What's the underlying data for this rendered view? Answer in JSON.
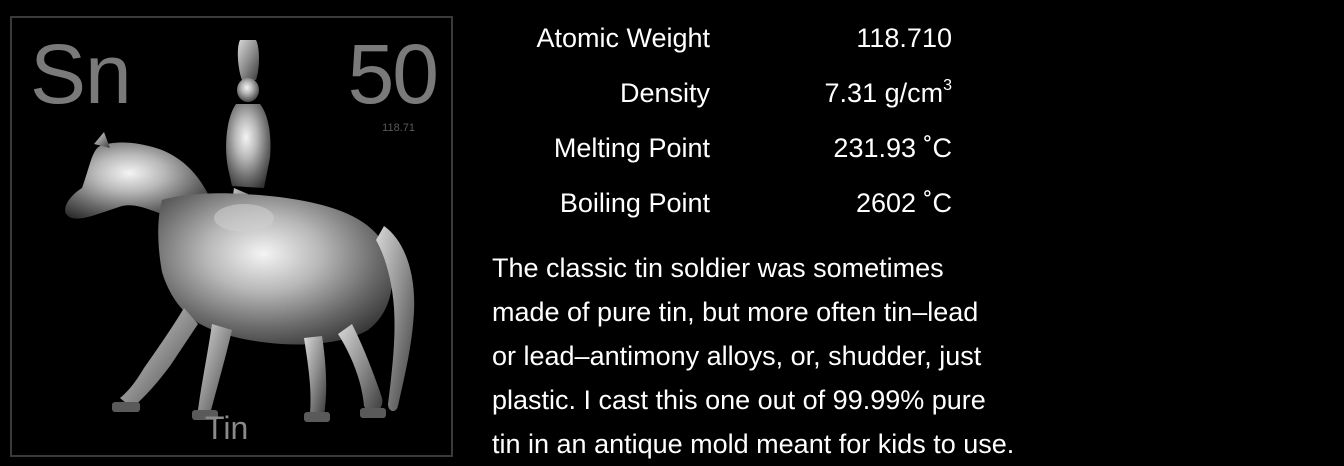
{
  "element": {
    "symbol": "Sn",
    "atomic_number": "50",
    "atomic_weight_small": "118.71",
    "name": "Tin"
  },
  "properties": [
    {
      "label": "Atomic Weight",
      "value": "118.710",
      "unit": "",
      "sup": ""
    },
    {
      "label": "Density",
      "value": "7.31 g/cm",
      "unit": "",
      "sup": "3"
    },
    {
      "label": "Melting Point",
      "value": "231.93 ˚C",
      "unit": "",
      "sup": ""
    },
    {
      "label": "Boiling Point",
      "value": "2602 ˚C",
      "unit": "",
      "sup": ""
    }
  ],
  "description_lines": [
    "The classic tin soldier was sometimes",
    "made of pure tin, but more often tin–lead",
    "or lead–antimony alloys, or, shudder, just",
    "plastic.  I cast this one out of 99.99% pure",
    "tin in an antique mold meant for kids to use."
  ],
  "colors": {
    "background": "#000000",
    "tile_text": "#7a7a7a",
    "text": "#ffffff",
    "metal_light": "#e8e8e8",
    "metal_dark": "#4a4a4a"
  },
  "image": {
    "subject": "tin-soldier-on-horse"
  }
}
